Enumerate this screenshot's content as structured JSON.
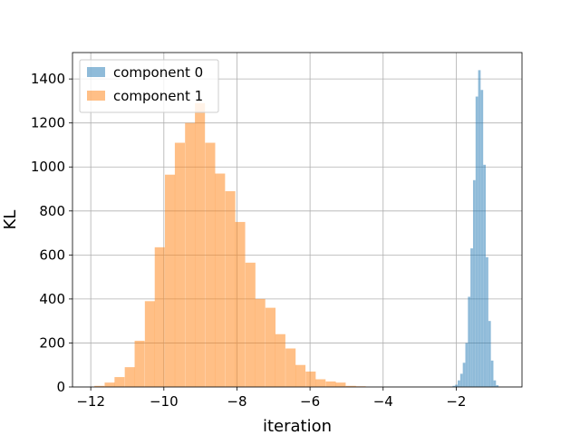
{
  "chart_data": {
    "type": "histogram",
    "title": "",
    "xlabel": "iteration",
    "ylabel": "KL",
    "xlim": [
      -12.5,
      -0.2
    ],
    "ylim": [
      0,
      1520
    ],
    "xticks": [
      -12,
      -10,
      -8,
      -6,
      -4,
      -2
    ],
    "yticks": [
      0,
      200,
      400,
      600,
      800,
      1000,
      1200,
      1400
    ],
    "grid": true,
    "legend": "top-left",
    "series": [
      {
        "name": "component 0",
        "color": "#1f77b4",
        "alpha": 0.5,
        "bin_width": 0.068,
        "bins": [
          [
            -2.1,
            5
          ],
          [
            -2.03,
            10
          ],
          [
            -1.96,
            30
          ],
          [
            -1.89,
            60
          ],
          [
            -1.82,
            110
          ],
          [
            -1.75,
            200
          ],
          [
            -1.68,
            410
          ],
          [
            -1.61,
            630
          ],
          [
            -1.54,
            940
          ],
          [
            -1.47,
            1320
          ],
          [
            -1.4,
            1440
          ],
          [
            -1.33,
            1350
          ],
          [
            -1.26,
            1010
          ],
          [
            -1.19,
            590
          ],
          [
            -1.12,
            300
          ],
          [
            -1.05,
            120
          ],
          [
            -0.98,
            30
          ],
          [
            -0.91,
            8
          ]
        ]
      },
      {
        "name": "component 1",
        "color": "#ff7f0e",
        "alpha": 0.5,
        "bin_width": 0.275,
        "bins": [
          [
            -11.9,
            5
          ],
          [
            -11.62,
            20
          ],
          [
            -11.35,
            45
          ],
          [
            -11.07,
            90
          ],
          [
            -10.8,
            210
          ],
          [
            -10.52,
            390
          ],
          [
            -10.25,
            635
          ],
          [
            -9.97,
            965
          ],
          [
            -9.7,
            1110
          ],
          [
            -9.42,
            1200
          ],
          [
            -9.15,
            1290
          ],
          [
            -8.87,
            1110
          ],
          [
            -8.6,
            970
          ],
          [
            -8.32,
            890
          ],
          [
            -8.05,
            750
          ],
          [
            -7.77,
            565
          ],
          [
            -7.5,
            400
          ],
          [
            -7.22,
            360
          ],
          [
            -6.95,
            240
          ],
          [
            -6.67,
            175
          ],
          [
            -6.4,
            100
          ],
          [
            -6.12,
            70
          ],
          [
            -5.85,
            35
          ],
          [
            -5.57,
            25
          ],
          [
            -5.3,
            20
          ],
          [
            -5.02,
            5
          ],
          [
            -4.75,
            3
          ]
        ]
      }
    ]
  }
}
